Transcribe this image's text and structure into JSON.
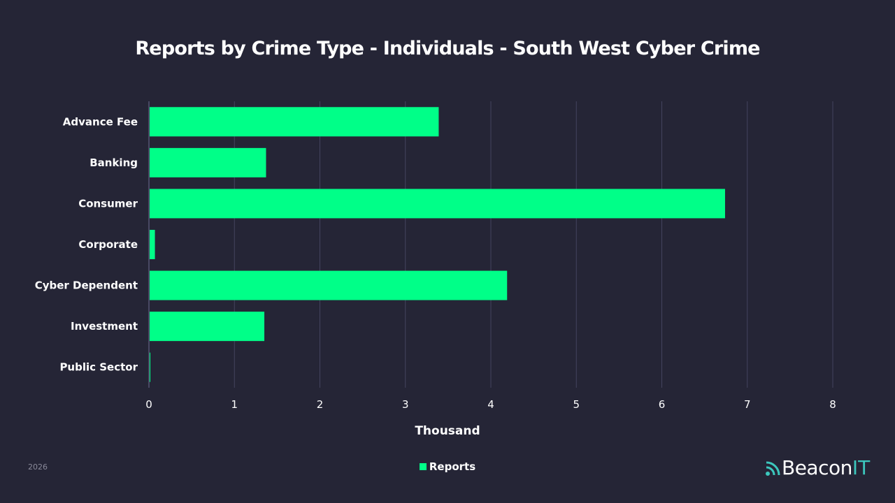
{
  "chart_data": {
    "type": "bar",
    "orientation": "horizontal",
    "title": "Reports by Crime Type - Individuals - South West Cyber Crime",
    "xlabel": "Thousand",
    "ylabel": "",
    "categories": [
      "Advance Fee",
      "Banking",
      "Consumer",
      "Corporate",
      "Cyber Dependent",
      "Investment",
      "Public Sector"
    ],
    "series": [
      {
        "name": "Reports",
        "values": [
          3.39,
          1.37,
          6.74,
          0.07,
          4.19,
          1.35,
          0.01
        ],
        "color": "#00ff88"
      }
    ],
    "xlim": [
      0,
      8
    ],
    "xticks": [
      "0",
      "1",
      "2",
      "3",
      "4",
      "5",
      "6",
      "7",
      "8"
    ],
    "grid": true,
    "legend": "bottom-center"
  },
  "footer": {
    "year": "2026",
    "logo_text_main": "Beacon",
    "logo_text_accent": "IT",
    "logo_icon": "signal-waves-icon",
    "accent_color": "#3cc7bd"
  }
}
